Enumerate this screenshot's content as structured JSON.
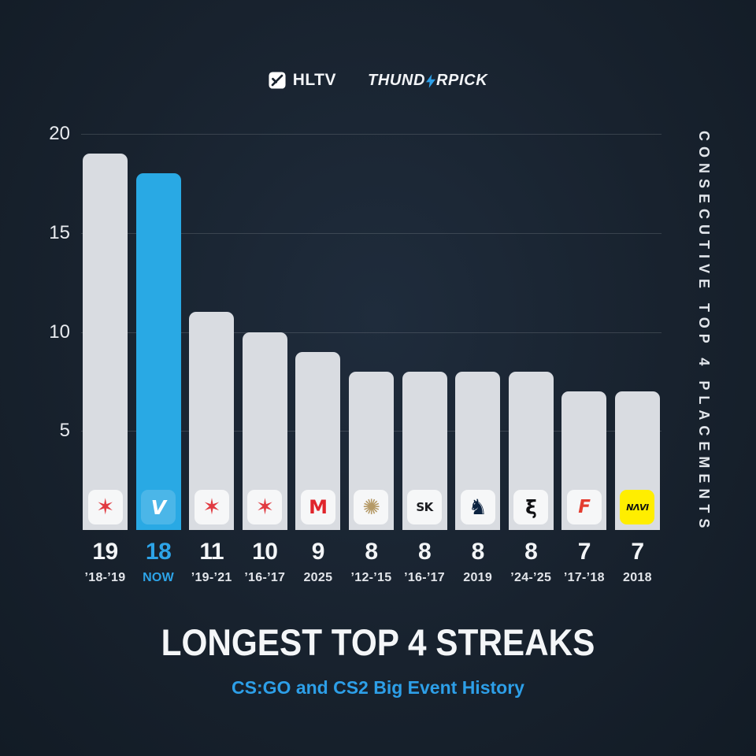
{
  "header": {
    "hltv_label": "HLTV",
    "thunderpick_left": "THUND",
    "thunderpick_right": "RPICK"
  },
  "colors": {
    "background": "#18222e",
    "bar_gray": "#d9dce1",
    "highlight_blue": "#29a9e4",
    "accent_blue": "#2d9fe8",
    "navi_yellow": "#ffee00",
    "astralis_red": "#e13a41",
    "mouz_red": "#e0242b",
    "nip_gold": "#b59a67",
    "liquid_navy": "#0c2340"
  },
  "chart_data": {
    "type": "bar",
    "title": "LONGEST TOP 4 STREAKS",
    "subtitle": "CS:GO and CS2 Big Event History",
    "ylabel": "CONSECUTIVE TOP 4 PLACEMENTS",
    "xlabel": "",
    "ylim": [
      0,
      20
    ],
    "yticks": [
      5,
      10,
      15,
      20
    ],
    "legend": "none",
    "grid": "horizontal",
    "bars": [
      {
        "id": "astralis",
        "team": "Astralis",
        "value": 19,
        "period": "’18-’19",
        "highlight": false,
        "logo": {
          "glyph": "✶",
          "color": "#e13a41",
          "bg": "#f6f7f8",
          "size": 28,
          "weight": "700"
        }
      },
      {
        "id": "vitality",
        "team": "Team Vitality",
        "value": 18,
        "period": "NOW",
        "highlight": true,
        "logo": {
          "glyph": "V",
          "color": "#ffffff",
          "bg": "rgba(255,255,255,0.16)",
          "size": 25,
          "weight": "800",
          "style": "italic"
        }
      },
      {
        "id": "astralis-2",
        "team": "Astralis",
        "value": 11,
        "period": "’19-’21",
        "highlight": false,
        "logo": {
          "glyph": "✶",
          "color": "#e13a41",
          "bg": "#f6f7f8",
          "size": 28,
          "weight": "700"
        }
      },
      {
        "id": "astralis-3",
        "team": "Astralis",
        "value": 10,
        "period": "’16-’17",
        "highlight": false,
        "logo": {
          "glyph": "✶",
          "color": "#e13a41",
          "bg": "#f6f7f8",
          "size": 28,
          "weight": "700"
        }
      },
      {
        "id": "mouz",
        "team": "MOUZ",
        "value": 9,
        "period": "2025",
        "highlight": false,
        "logo": {
          "glyph": "M",
          "color": "#e0242b",
          "bg": "#f6f7f8",
          "size": 24,
          "weight": "900"
        }
      },
      {
        "id": "nip",
        "team": "Ninjas in Pyjamas",
        "value": 8,
        "period": "’12-’15",
        "highlight": false,
        "logo": {
          "glyph": "✺",
          "color": "#b59a67",
          "bg": "#f6f7f8",
          "size": 27,
          "weight": "700"
        }
      },
      {
        "id": "sk",
        "team": "SK Gaming",
        "value": 8,
        "period": "’16-’17",
        "highlight": false,
        "logo": {
          "glyph": "SK",
          "color": "#1b1c20",
          "bg": "#f6f7f8",
          "size": 15,
          "weight": "900"
        }
      },
      {
        "id": "liquid",
        "team": "Team Liquid",
        "value": 8,
        "period": "2019",
        "highlight": false,
        "logo": {
          "glyph": "♞",
          "color": "#0c2340",
          "bg": "#f6f7f8",
          "size": 27,
          "weight": "700"
        }
      },
      {
        "id": "spirit",
        "team": "Team Spirit",
        "value": 8,
        "period": "’24-’25",
        "highlight": false,
        "logo": {
          "glyph": "ξ",
          "color": "#101114",
          "bg": "#f6f7f8",
          "size": 25,
          "weight": "900"
        }
      },
      {
        "id": "faze",
        "team": "FaZe Clan",
        "value": 7,
        "period": "’17-’18",
        "highlight": false,
        "logo": {
          "glyph": "F",
          "color": "#e43d30",
          "bg": "#f6f7f8",
          "size": 23,
          "weight": "900",
          "style": "italic"
        }
      },
      {
        "id": "navi",
        "team": "Natus Vincere",
        "value": 7,
        "period": "2018",
        "highlight": false,
        "logo": {
          "glyph": "NΛVI",
          "color": "#111111",
          "bg": "#ffee00",
          "size": 11,
          "weight": "900",
          "style": "italic"
        }
      }
    ]
  }
}
